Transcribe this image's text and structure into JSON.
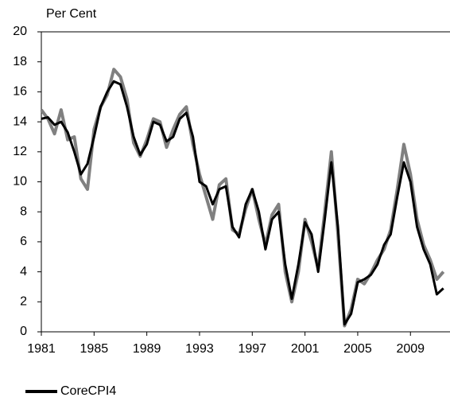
{
  "chart_data": {
    "type": "line",
    "y_label": "Per Cent",
    "x": [
      1981,
      1981.5,
      1982,
      1982.5,
      1983,
      1983.5,
      1984,
      1984.5,
      1985,
      1985.5,
      1986,
      1986.5,
      1987,
      1987.5,
      1988,
      1988.5,
      1989,
      1989.5,
      1990,
      1990.5,
      1991,
      1991.5,
      1992,
      1992.5,
      1993,
      1993.5,
      1994,
      1994.5,
      1995,
      1995.5,
      1996,
      1996.5,
      1997,
      1997.5,
      1998,
      1998.5,
      1999,
      1999.5,
      2000,
      2000.5,
      2001,
      2001.5,
      2002,
      2002.5,
      2003,
      2003.5,
      2004,
      2004.5,
      2005,
      2005.5,
      2006,
      2006.5,
      2007,
      2007.5,
      2008,
      2008.5,
      2009,
      2009.5,
      2010,
      2010.5,
      2011,
      2011.5
    ],
    "series": [
      {
        "color": "#808080",
        "values": [
          14.8,
          14.2,
          13.2,
          14.8,
          12.8,
          13.0,
          10.2,
          9.5,
          13.5,
          15.0,
          15.8,
          17.5,
          17.0,
          15.5,
          12.6,
          11.7,
          12.8,
          14.2,
          14.0,
          12.3,
          13.5,
          14.5,
          15.0,
          12.5,
          10.5,
          9.0,
          7.5,
          9.8,
          10.2,
          6.8,
          6.5,
          8.2,
          9.5,
          7.5,
          5.8,
          7.8,
          8.5,
          4.0,
          2.0,
          4.0,
          7.5,
          6.0,
          4.2,
          8.0,
          12.0,
          6.5,
          0.4,
          1.5,
          3.5,
          3.2,
          3.9,
          4.8,
          5.5,
          6.8,
          9.5,
          12.5,
          10.5,
          7.5,
          5.8,
          4.8,
          3.5,
          4.0
        ]
      },
      {
        "name": "CoreCPI4",
        "color": "#000000",
        "values": [
          14.2,
          14.3,
          13.8,
          14.0,
          13.3,
          12.0,
          10.5,
          11.2,
          13.0,
          15.0,
          16.0,
          16.7,
          16.5,
          15.0,
          13.0,
          11.8,
          12.5,
          14.0,
          13.8,
          12.7,
          13.0,
          14.2,
          14.6,
          13.0,
          10.0,
          9.7,
          8.5,
          9.5,
          9.7,
          7.0,
          6.3,
          8.5,
          9.5,
          8.0,
          5.5,
          7.5,
          8.0,
          4.5,
          2.2,
          4.5,
          7.3,
          6.5,
          4.0,
          7.5,
          11.3,
          7.0,
          0.5,
          1.2,
          3.3,
          3.5,
          3.8,
          4.5,
          5.8,
          6.5,
          9.0,
          11.3,
          10.0,
          7.0,
          5.5,
          4.5,
          2.5,
          2.9
        ]
      }
    ],
    "xlim": [
      1981,
      2012
    ],
    "ylim": [
      0,
      20
    ],
    "xticks": [
      1981,
      1985,
      1989,
      1993,
      1997,
      2001,
      2005,
      2009
    ],
    "yticks": [
      0,
      2,
      4,
      6,
      8,
      10,
      12,
      14,
      16,
      18,
      20
    ],
    "legend": "bottom-left"
  }
}
